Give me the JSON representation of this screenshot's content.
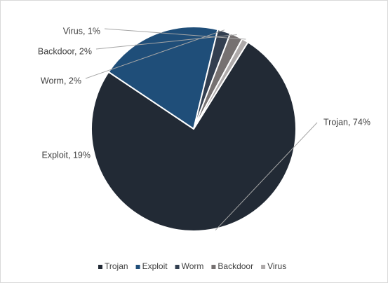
{
  "chart_data": {
    "type": "pie",
    "title": "",
    "slices": [
      {
        "name": "Trojan",
        "value": 74,
        "label": "Trojan, 74%",
        "color": "#222a35"
      },
      {
        "name": "Exploit",
        "value": 19,
        "label": "Exploit, 19%",
        "color": "#1f4e79"
      },
      {
        "name": "Worm",
        "value": 2,
        "label": "Worm, 2%",
        "color": "#333f50"
      },
      {
        "name": "Backdoor",
        "value": 2,
        "label": "Backdoor, 2%",
        "color": "#767171"
      },
      {
        "name": "Virus",
        "value": 1,
        "label": "Virus, 1%",
        "color": "#aeaaaa"
      }
    ],
    "start_angle_deg": 32,
    "direction": "clockwise",
    "legend_position": "bottom"
  }
}
